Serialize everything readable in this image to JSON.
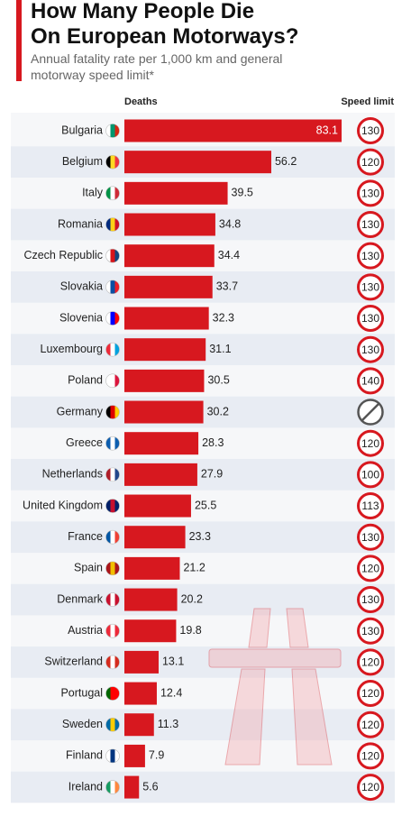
{
  "chart_data": {
    "type": "bar",
    "title_lines": [
      "How Many People Die",
      "On European Motorways?"
    ],
    "subtitle_lines": [
      "Annual fatality rate per 1,000 km and general",
      "motorway speed limit*"
    ],
    "value_header": "Deaths",
    "limit_header": "Speed limit",
    "categories": [
      "Bulgaria",
      "Belgium",
      "Italy",
      "Romania",
      "Czech Republic",
      "Slovakia",
      "Slovenia",
      "Luxembourg",
      "Poland",
      "Germany",
      "Greece",
      "Netherlands",
      "United Kingdom",
      "France",
      "Spain",
      "Denmark",
      "Austria",
      "Switzerland",
      "Portugal",
      "Sweden",
      "Finland",
      "Ireland"
    ],
    "values": [
      83.1,
      56.2,
      39.5,
      34.8,
      34.4,
      33.7,
      32.3,
      31.1,
      30.5,
      30.2,
      28.3,
      27.9,
      25.5,
      23.3,
      21.2,
      20.2,
      19.8,
      13.1,
      12.4,
      11.3,
      7.9,
      5.6
    ],
    "speed_limits": [
      130,
      120,
      130,
      130,
      130,
      130,
      130,
      130,
      140,
      null,
      120,
      100,
      113,
      130,
      120,
      130,
      130,
      120,
      120,
      120,
      120,
      120
    ],
    "color": "#d7181f"
  }
}
